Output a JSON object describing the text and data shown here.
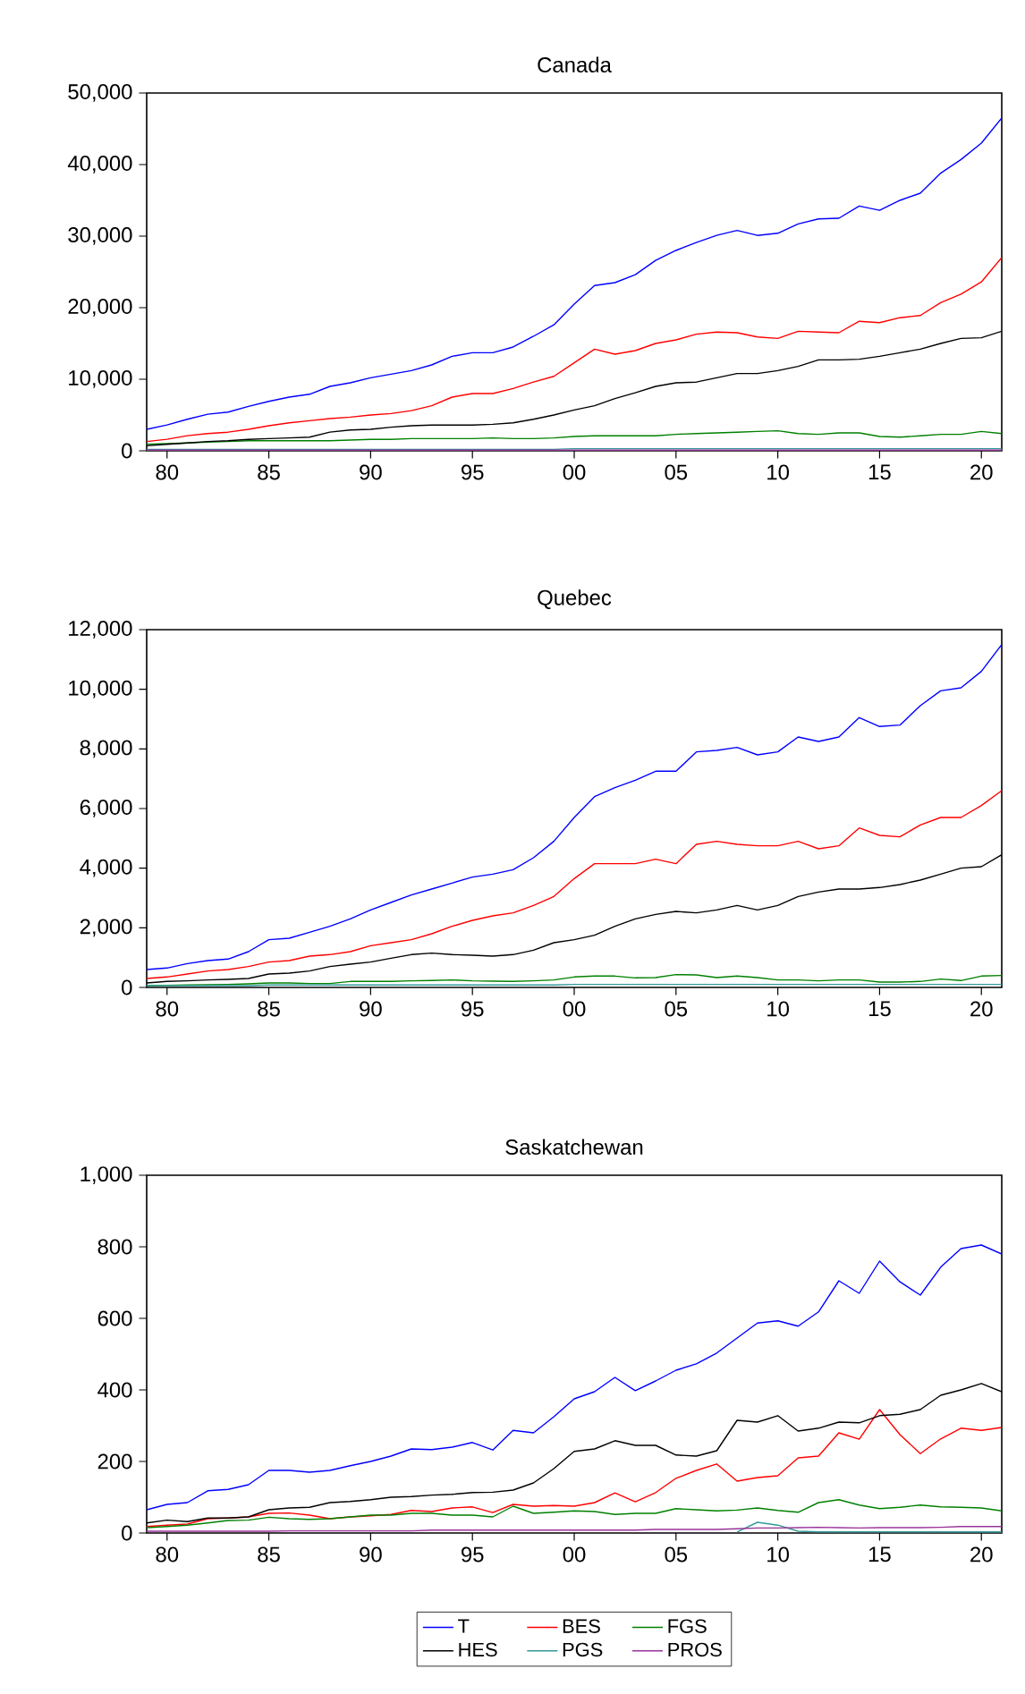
{
  "chart_data": [
    {
      "type": "line",
      "title": "Canada",
      "x": [
        1979,
        1980,
        1981,
        1982,
        1983,
        1984,
        1985,
        1986,
        1987,
        1988,
        1989,
        1990,
        1991,
        1992,
        1993,
        1994,
        1995,
        1996,
        1997,
        1998,
        1999,
        2000,
        2001,
        2002,
        2003,
        2004,
        2005,
        2006,
        2007,
        2008,
        2009,
        2010,
        2011,
        2012,
        2013,
        2014,
        2015,
        2016,
        2017,
        2018,
        2019,
        2020,
        2021
      ],
      "xlim": [
        1979,
        2021
      ],
      "xticks": [
        {
          "value": 1980,
          "label": "80"
        },
        {
          "value": 1985,
          "label": "85"
        },
        {
          "value": 1990,
          "label": "90"
        },
        {
          "value": 1995,
          "label": "95"
        },
        {
          "value": 2000,
          "label": "00"
        },
        {
          "value": 2005,
          "label": "05"
        },
        {
          "value": 2010,
          "label": "10"
        },
        {
          "value": 2015,
          "label": "15"
        },
        {
          "value": 2020,
          "label": "20"
        }
      ],
      "ylim": [
        0,
        50000
      ],
      "yticks": [
        0,
        {
          "value": 10000,
          "label": "10,000"
        },
        {
          "value": 20000,
          "label": "20,000"
        },
        {
          "value": 30000,
          "label": "30,000"
        },
        {
          "value": 40000,
          "label": "40,000"
        },
        {
          "value": 50000,
          "label": "50,000"
        }
      ],
      "series": [
        {
          "color": "#0000ff",
          "values": [
            3000,
            3600,
            4400,
            5100,
            5400,
            6200,
            6900,
            7500,
            7900,
            9000,
            9500,
            10200,
            10700,
            11200,
            12000,
            13200,
            13700,
            13700,
            14500,
            16000,
            17600,
            20500,
            23100,
            23500,
            24600,
            26600,
            28000,
            29100,
            30100,
            30800,
            30100,
            30400,
            31700,
            32400,
            32500,
            34200,
            33600,
            35000,
            36000,
            38800,
            40700,
            43000,
            46500
          ]
        },
        {
          "color": "#ff0000",
          "values": [
            1300,
            1600,
            2100,
            2400,
            2600,
            3000,
            3500,
            3900,
            4200,
            4500,
            4700,
            5000,
            5200,
            5600,
            6300,
            7500,
            8000,
            8000,
            8700,
            9600,
            10400,
            12300,
            14200,
            13500,
            14000,
            15000,
            15500,
            16300,
            16600,
            16500,
            15900,
            15700,
            16700,
            16600,
            16500,
            18100,
            17900,
            18600,
            18900,
            20700,
            21900,
            23600,
            27000
          ]
        },
        {
          "color": "#008000",
          "values": [
            900,
            1000,
            1100,
            1200,
            1300,
            1400,
            1400,
            1400,
            1400,
            1400,
            1500,
            1600,
            1600,
            1700,
            1700,
            1700,
            1700,
            1800,
            1700,
            1700,
            1800,
            2000,
            2100,
            2100,
            2100,
            2100,
            2300,
            2400,
            2500,
            2600,
            2700,
            2800,
            2400,
            2300,
            2500,
            2500,
            2000,
            1900,
            2100,
            2300,
            2300,
            2700,
            2400
          ]
        },
        {
          "color": "#000000",
          "values": [
            700,
            900,
            1100,
            1300,
            1400,
            1600,
            1700,
            1800,
            1900,
            2600,
            2900,
            3000,
            3300,
            3500,
            3600,
            3600,
            3600,
            3700,
            3900,
            4400,
            5000,
            5700,
            6300,
            7300,
            8100,
            9000,
            9500,
            9600,
            10200,
            10800,
            10800,
            11200,
            11800,
            12700,
            12700,
            12800,
            13200,
            13700,
            14200,
            15000,
            15700,
            15800,
            16700
          ]
        },
        {
          "color": "#339999",
          "values": [
            200,
            200,
            200,
            200,
            200,
            200,
            200,
            200,
            200,
            200,
            200,
            200,
            200,
            200,
            200,
            200,
            200,
            200,
            200,
            200,
            200,
            300,
            300,
            300,
            300,
            300,
            300,
            300,
            300,
            300,
            300,
            300,
            300,
            300,
            300,
            300,
            300,
            300,
            300,
            300,
            300,
            300,
            300
          ]
        },
        {
          "color": "#993399",
          "values": [
            100,
            100,
            100,
            100,
            100,
            100,
            100,
            100,
            100,
            100,
            100,
            100,
            100,
            100,
            100,
            100,
            100,
            100,
            100,
            100,
            100,
            100,
            100,
            100,
            100,
            100,
            100,
            100,
            100,
            100,
            100,
            100,
            100,
            100,
            100,
            100,
            100,
            100,
            100,
            100,
            100,
            100,
            100
          ]
        }
      ]
    },
    {
      "type": "line",
      "title": "Quebec",
      "x": [
        1979,
        1980,
        1981,
        1982,
        1983,
        1984,
        1985,
        1986,
        1987,
        1988,
        1989,
        1990,
        1991,
        1992,
        1993,
        1994,
        1995,
        1996,
        1997,
        1998,
        1999,
        2000,
        2001,
        2002,
        2003,
        2004,
        2005,
        2006,
        2007,
        2008,
        2009,
        2010,
        2011,
        2012,
        2013,
        2014,
        2015,
        2016,
        2017,
        2018,
        2019,
        2020,
        2021
      ],
      "xlim": [
        1979,
        2021
      ],
      "xticks": [
        {
          "value": 1980,
          "label": "80"
        },
        {
          "value": 1985,
          "label": "85"
        },
        {
          "value": 1990,
          "label": "90"
        },
        {
          "value": 1995,
          "label": "95"
        },
        {
          "value": 2000,
          "label": "00"
        },
        {
          "value": 2005,
          "label": "05"
        },
        {
          "value": 2010,
          "label": "10"
        },
        {
          "value": 2015,
          "label": "15"
        },
        {
          "value": 2020,
          "label": "20"
        }
      ],
      "ylim": [
        0,
        12000
      ],
      "yticks": [
        0,
        {
          "value": 2000,
          "label": "2,000"
        },
        {
          "value": 4000,
          "label": "4,000"
        },
        {
          "value": 6000,
          "label": "6,000"
        },
        {
          "value": 8000,
          "label": "8,000"
        },
        {
          "value": 10000,
          "label": "10,000"
        },
        {
          "value": 12000,
          "label": "12,000"
        }
      ],
      "series": [
        {
          "color": "#0000ff",
          "values": [
            600,
            650,
            800,
            900,
            950,
            1200,
            1600,
            1650,
            1850,
            2050,
            2300,
            2600,
            2850,
            3100,
            3300,
            3500,
            3700,
            3800,
            3950,
            4350,
            4900,
            5700,
            6400,
            6700,
            6950,
            7250,
            7250,
            7900,
            7950,
            8050,
            7800,
            7900,
            8400,
            8250,
            8400,
            9050,
            8750,
            8800,
            9450,
            9950,
            10050,
            10600,
            11500
          ]
        },
        {
          "color": "#ff0000",
          "values": [
            300,
            350,
            450,
            550,
            600,
            700,
            850,
            900,
            1050,
            1100,
            1200,
            1400,
            1500,
            1600,
            1800,
            2050,
            2250,
            2400,
            2500,
            2750,
            3050,
            3650,
            4150,
            4150,
            4150,
            4300,
            4150,
            4800,
            4900,
            4800,
            4750,
            4750,
            4900,
            4650,
            4750,
            5350,
            5100,
            5050,
            5450,
            5700,
            5700,
            6100,
            6600
          ]
        },
        {
          "color": "#008000",
          "values": [
            60,
            70,
            80,
            90,
            100,
            120,
            150,
            150,
            130,
            130,
            200,
            200,
            200,
            220,
            230,
            250,
            220,
            210,
            200,
            220,
            250,
            350,
            380,
            380,
            320,
            330,
            430,
            420,
            330,
            380,
            330,
            250,
            250,
            220,
            250,
            250,
            180,
            180,
            200,
            280,
            230,
            380,
            400
          ]
        },
        {
          "color": "#000000",
          "values": [
            150,
            200,
            220,
            250,
            270,
            300,
            450,
            480,
            550,
            700,
            780,
            850,
            980,
            1100,
            1150,
            1100,
            1080,
            1050,
            1100,
            1250,
            1500,
            1600,
            1750,
            2050,
            2300,
            2450,
            2550,
            2500,
            2600,
            2750,
            2600,
            2750,
            3050,
            3200,
            3300,
            3300,
            3350,
            3450,
            3600,
            3800,
            4000,
            4050,
            4450
          ]
        },
        {
          "color": "#339999",
          "values": [
            60,
            60,
            60,
            60,
            60,
            60,
            80,
            80,
            80,
            80,
            80,
            80,
            80,
            80,
            80,
            80,
            80,
            80,
            80,
            80,
            80,
            100,
            100,
            100,
            100,
            100,
            100,
            100,
            100,
            100,
            100,
            100,
            100,
            100,
            100,
            100,
            100,
            100,
            100,
            100,
            100,
            100,
            100
          ]
        }
      ]
    },
    {
      "type": "line",
      "title": "Saskatchewan",
      "x": [
        1979,
        1980,
        1981,
        1982,
        1983,
        1984,
        1985,
        1986,
        1987,
        1988,
        1989,
        1990,
        1991,
        1992,
        1993,
        1994,
        1995,
        1996,
        1997,
        1998,
        1999,
        2000,
        2001,
        2002,
        2003,
        2004,
        2005,
        2006,
        2007,
        2008,
        2009,
        2010,
        2011,
        2012,
        2013,
        2014,
        2015,
        2016,
        2017,
        2018,
        2019,
        2020,
        2021
      ],
      "xlim": [
        1979,
        2021
      ],
      "xticks": [
        {
          "value": 1980,
          "label": "80"
        },
        {
          "value": 1985,
          "label": "85"
        },
        {
          "value": 1990,
          "label": "90"
        },
        {
          "value": 1995,
          "label": "95"
        },
        {
          "value": 2000,
          "label": "00"
        },
        {
          "value": 2005,
          "label": "05"
        },
        {
          "value": 2010,
          "label": "10"
        },
        {
          "value": 2015,
          "label": "15"
        },
        {
          "value": 2020,
          "label": "20"
        }
      ],
      "ylim": [
        0,
        1000
      ],
      "yticks": [
        0,
        200,
        400,
        600,
        800,
        {
          "value": 1000,
          "label": "1,000"
        }
      ],
      "legend": "bottom",
      "series": [
        {
          "name": "T",
          "color": "#0000ff",
          "values": [
            65,
            80,
            85,
            118,
            122,
            135,
            175,
            175,
            170,
            175,
            188,
            200,
            215,
            235,
            233,
            240,
            253,
            232,
            287,
            280,
            325,
            375,
            395,
            435,
            398,
            425,
            455,
            473,
            503,
            545,
            587,
            593,
            578,
            618,
            705,
            670,
            760,
            702,
            665,
            743,
            795,
            805,
            780
          ]
        },
        {
          "name": "BES",
          "color": "#ff0000",
          "values": [
            18,
            22,
            25,
            40,
            42,
            45,
            55,
            56,
            50,
            40,
            45,
            48,
            52,
            63,
            60,
            70,
            73,
            57,
            80,
            75,
            77,
            75,
            85,
            112,
            87,
            113,
            153,
            175,
            193,
            145,
            155,
            160,
            210,
            215,
            280,
            262,
            345,
            275,
            222,
            263,
            293,
            287,
            295
          ]
        },
        {
          "name": "FGS",
          "color": "#008000",
          "values": [
            15,
            18,
            22,
            28,
            35,
            36,
            44,
            40,
            38,
            40,
            45,
            50,
            50,
            55,
            55,
            50,
            50,
            45,
            75,
            55,
            58,
            62,
            60,
            52,
            55,
            55,
            68,
            65,
            62,
            64,
            70,
            63,
            58,
            85,
            93,
            78,
            68,
            72,
            78,
            73,
            72,
            70,
            62
          ]
        },
        {
          "name": "HES",
          "color": "#000000",
          "values": [
            28,
            36,
            32,
            42,
            42,
            45,
            65,
            70,
            72,
            85,
            88,
            93,
            100,
            102,
            106,
            108,
            113,
            114,
            120,
            140,
            180,
            228,
            235,
            258,
            245,
            245,
            218,
            215,
            230,
            315,
            310,
            328,
            285,
            293,
            310,
            308,
            328,
            332,
            345,
            385,
            400,
            418,
            395
          ]
        },
        {
          "name": "PGS",
          "color": "#339999",
          "values": [
            null,
            null,
            null,
            null,
            null,
            null,
            null,
            null,
            null,
            null,
            null,
            null,
            null,
            null,
            null,
            null,
            null,
            null,
            null,
            null,
            null,
            null,
            null,
            null,
            null,
            null,
            null,
            null,
            null,
            3,
            30,
            22,
            5,
            3,
            3,
            3,
            3,
            3,
            3,
            3,
            3,
            3,
            3
          ]
        },
        {
          "name": "PROS",
          "color": "#993399",
          "values": [
            5,
            5,
            5,
            5,
            5,
            5,
            5,
            6,
            6,
            6,
            6,
            6,
            6,
            6,
            8,
            8,
            8,
            8,
            8,
            8,
            8,
            8,
            8,
            8,
            8,
            10,
            10,
            10,
            10,
            12,
            14,
            14,
            15,
            16,
            15,
            14,
            15,
            15,
            15,
            16,
            18,
            18,
            18
          ]
        }
      ]
    }
  ]
}
